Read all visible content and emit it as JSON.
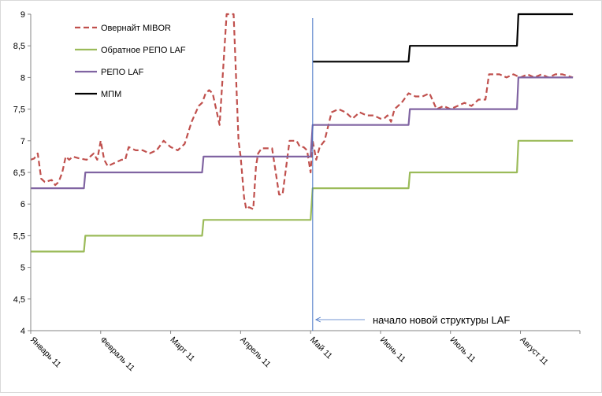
{
  "chart_data": {
    "type": "line",
    "title": "",
    "xlabel": "",
    "ylabel": "",
    "ylim": [
      4,
      9
    ],
    "yticks": [
      "4",
      "4,5",
      "5",
      "5,5",
      "6",
      "6,5",
      "7",
      "7,5",
      "8",
      "8,5",
      "9"
    ],
    "xticks": [
      "Январь 11",
      "Февраль 11",
      "Март 11",
      "Апрель 11",
      "Май 11",
      "Июнь 11",
      "Июль 11",
      "Август 11"
    ],
    "x_unit": "months since start of January 2011",
    "xlim": [
      0,
      7.85
    ],
    "grid": false,
    "legend_position": "top-left",
    "vline": {
      "x": 4.03,
      "label": "начало новой структуры LAF",
      "color": "#4472c4"
    },
    "series": [
      {
        "name": "Овернайт MIBOR",
        "color": "#c0504d",
        "style": "dashed",
        "x": [
          0,
          0.05,
          0.1,
          0.15,
          0.2,
          0.3,
          0.35,
          0.4,
          0.45,
          0.5,
          0.55,
          0.6,
          0.7,
          0.8,
          0.9,
          0.95,
          1.0,
          1.05,
          1.1,
          1.2,
          1.3,
          1.35,
          1.4,
          1.5,
          1.55,
          1.6,
          1.7,
          1.8,
          1.9,
          2.0,
          2.1,
          2.2,
          2.3,
          2.4,
          2.45,
          2.5,
          2.55,
          2.6,
          2.7,
          2.8,
          2.9,
          2.97,
          3.0,
          3.05,
          3.08,
          3.12,
          3.18,
          3.22,
          3.25,
          3.3,
          3.35,
          3.45,
          3.55,
          3.6,
          3.7,
          3.8,
          3.85,
          3.9,
          3.95,
          4.0,
          4.03,
          4.08,
          4.13,
          4.2,
          4.3,
          4.4,
          4.5,
          4.6,
          4.7,
          4.8,
          4.9,
          5.0,
          5.05,
          5.1,
          5.15,
          5.2,
          5.3,
          5.4,
          5.5,
          5.6,
          5.7,
          5.8,
          5.9,
          6.0,
          6.1,
          6.2,
          6.3,
          6.4,
          6.5,
          6.55,
          6.6,
          6.7,
          6.8,
          6.9,
          7.0,
          7.1,
          7.2,
          7.3,
          7.4,
          7.5,
          7.6,
          7.75
        ],
        "y": [
          6.7,
          6.72,
          6.8,
          6.4,
          6.35,
          6.38,
          6.3,
          6.35,
          6.5,
          6.75,
          6.7,
          6.75,
          6.72,
          6.7,
          6.8,
          6.7,
          7.0,
          6.7,
          6.6,
          6.65,
          6.7,
          6.7,
          6.9,
          6.85,
          6.85,
          6.85,
          6.8,
          6.85,
          7.0,
          6.9,
          6.85,
          6.95,
          7.3,
          7.55,
          7.6,
          7.75,
          7.8,
          7.75,
          7.25,
          9.0,
          9.0,
          7.0,
          6.75,
          6.1,
          5.92,
          5.95,
          5.92,
          6.6,
          6.8,
          6.88,
          6.88,
          6.88,
          6.15,
          6.15,
          7.0,
          7.0,
          6.9,
          6.9,
          6.85,
          6.5,
          7.0,
          6.7,
          6.9,
          7.0,
          7.45,
          7.5,
          7.45,
          7.35,
          7.45,
          7.4,
          7.4,
          7.35,
          7.35,
          7.4,
          7.3,
          7.5,
          7.6,
          7.75,
          7.7,
          7.7,
          7.75,
          7.5,
          7.55,
          7.5,
          7.55,
          7.6,
          7.55,
          7.65,
          7.65,
          8.05,
          8.05,
          8.05,
          8.0,
          8.05,
          8.0,
          8.05,
          8.0,
          8.05,
          8.0,
          8.05,
          8.05,
          8.0
        ]
      },
      {
        "name": "Обратное РЕПО LAF",
        "color": "#9bbb59",
        "style": "solid",
        "x": [
          0,
          0.76,
          0.78,
          2.45,
          2.47,
          4.0,
          4.03,
          5.4,
          5.42,
          6.95,
          6.97,
          7.75
        ],
        "y": [
          5.25,
          5.25,
          5.5,
          5.5,
          5.75,
          5.75,
          6.25,
          6.25,
          6.5,
          6.5,
          7.0,
          7.0
        ]
      },
      {
        "name": "РЕПО LAF",
        "color": "#8064a2",
        "style": "solid",
        "x": [
          0,
          0.76,
          0.78,
          2.45,
          2.47,
          4.0,
          4.03,
          5.4,
          5.42,
          6.95,
          6.97,
          7.75
        ],
        "y": [
          6.25,
          6.25,
          6.5,
          6.5,
          6.75,
          6.75,
          7.25,
          7.25,
          7.5,
          7.5,
          8.0,
          8.0
        ]
      },
      {
        "name": "МПМ",
        "color": "#000000",
        "style": "solid",
        "x": [
          4.03,
          5.4,
          5.42,
          6.95,
          6.97,
          7.75
        ],
        "y": [
          8.25,
          8.25,
          8.5,
          8.5,
          9.0,
          9.0
        ]
      }
    ]
  }
}
